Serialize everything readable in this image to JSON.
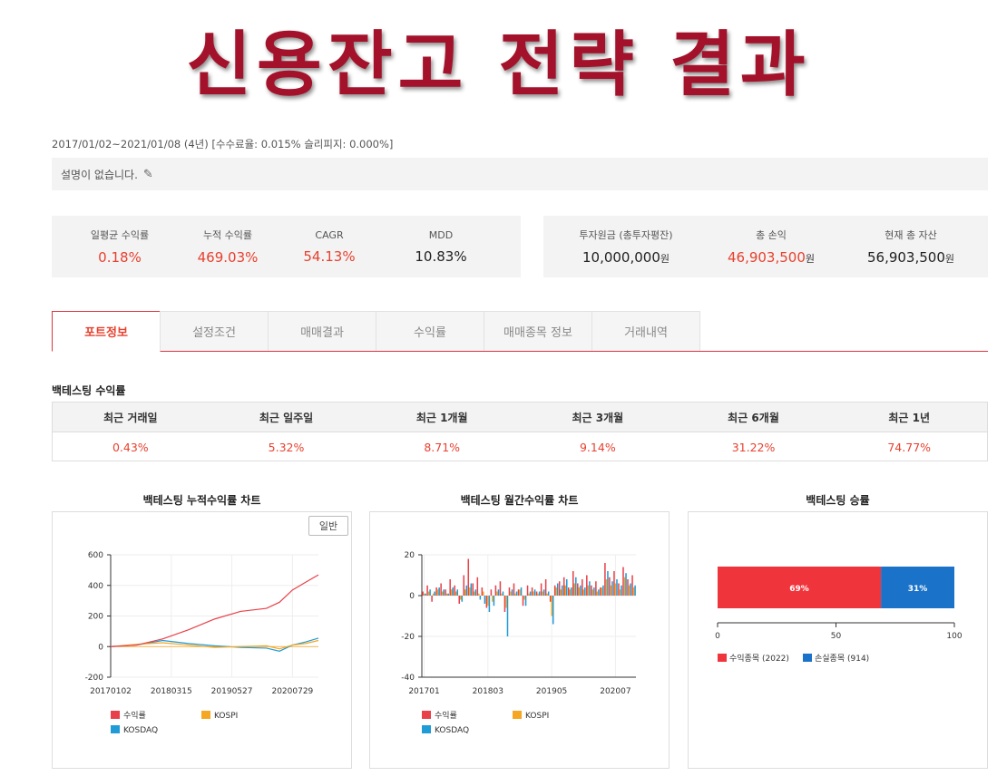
{
  "page_title": "신용잔고 전략 결과",
  "period": "2017/01/02~2021/01/08 (4년) [수수료율: 0.015% 슬리피지: 0.000%]",
  "description": "설명이 없습니다.",
  "stats_left": [
    {
      "label": "일평균 수익률",
      "value": "0.18%"
    },
    {
      "label": "누적 수익률",
      "value": "469.03%"
    },
    {
      "label": "CAGR",
      "value": "54.13%"
    },
    {
      "label": "MDD",
      "value": "10.83%"
    }
  ],
  "stats_right": [
    {
      "label": "투자원금 (총투자평잔)",
      "value": "10,000,000",
      "unit": "원"
    },
    {
      "label": "총 손익",
      "value": "46,903,500",
      "unit": "원"
    },
    {
      "label": "현재 총 자산",
      "value": "56,903,500",
      "unit": "원"
    }
  ],
  "tabs": [
    "포트정보",
    "설정조건",
    "매매결과",
    "수익률",
    "매매종목 정보",
    "거래내역"
  ],
  "active_tab": "포트정보",
  "backtest_section_title": "백테스팅 수익률",
  "returns_table": {
    "headers": [
      "최근 거래일",
      "최근 일주일",
      "최근 1개월",
      "최근 3개월",
      "최근 6개월",
      "최근 1년"
    ],
    "values": [
      "0.43%",
      "5.32%",
      "8.71%",
      "9.14%",
      "31.22%",
      "74.77%"
    ]
  },
  "colors": {
    "title": "#a3122a",
    "accent": "#e8412f",
    "series1": "#e8414a",
    "kospi": "#f5a623",
    "kosdaq": "#1f9bd7",
    "win": "#f0343c",
    "loss": "#1a72c9"
  },
  "chart_data": [
    {
      "type": "line",
      "title": "백테스팅 누적수익률 차트",
      "button_label": "일반",
      "x_ticks": [
        "20170102",
        "20180315",
        "20190527",
        "20200729"
      ],
      "y_ticks": [
        600,
        400,
        200,
        0,
        -200
      ],
      "ylim": [
        -200,
        600
      ],
      "series": [
        {
          "name": "수익률",
          "x": [
            "2017-01",
            "2017-07",
            "2018-01",
            "2018-07",
            "2019-01",
            "2019-07",
            "2020-01",
            "2020-04",
            "2020-07",
            "2020-10",
            "2021-01"
          ],
          "y": [
            0,
            10,
            50,
            110,
            180,
            230,
            250,
            290,
            370,
            420,
            469
          ]
        },
        {
          "name": "KOSPI",
          "x": [
            "2017-01",
            "2017-07",
            "2018-01",
            "2018-07",
            "2019-01",
            "2019-07",
            "2020-01",
            "2020-04",
            "2020-07",
            "2020-10",
            "2021-01"
          ],
          "y": [
            0,
            15,
            25,
            10,
            -5,
            0,
            5,
            -15,
            10,
            20,
            40
          ]
        },
        {
          "name": "KOSDAQ",
          "x": [
            "2017-01",
            "2017-07",
            "2018-01",
            "2018-07",
            "2019-01",
            "2019-07",
            "2020-01",
            "2020-04",
            "2020-07",
            "2020-10",
            "2021-01"
          ],
          "y": [
            0,
            10,
            40,
            20,
            5,
            -5,
            -10,
            -30,
            10,
            30,
            55
          ]
        }
      ],
      "legend": [
        "수익률",
        "KOSPI",
        "KOSDAQ"
      ]
    },
    {
      "type": "bar",
      "title": "백테스팅 월간수익률 차트",
      "x_ticks": [
        "201701",
        "201803",
        "201905",
        "202007"
      ],
      "y_ticks": [
        20,
        0,
        -20,
        -40
      ],
      "ylim": [
        -40,
        20
      ],
      "series": [
        {
          "name": "수익률",
          "values": [
            2,
            5,
            -3,
            4,
            6,
            3,
            8,
            5,
            -4,
            10,
            18,
            6,
            9,
            4,
            -6,
            3,
            5,
            7,
            -8,
            4,
            6,
            3,
            -5,
            5,
            4,
            2,
            6,
            8,
            -3,
            5,
            7,
            9,
            4,
            12,
            6,
            8,
            10,
            5,
            7,
            4,
            16,
            9,
            12,
            6,
            14,
            8,
            10
          ]
        },
        {
          "name": "KOSPI",
          "values": [
            1,
            2,
            1,
            3,
            2,
            1,
            3,
            2,
            -2,
            3,
            4,
            2,
            1,
            2,
            -5,
            -3,
            2,
            1,
            -6,
            2,
            1,
            3,
            -2,
            1,
            2,
            1,
            2,
            1,
            -10,
            4,
            3,
            5,
            3,
            6,
            4,
            3,
            5,
            3,
            2,
            4,
            8,
            5,
            6,
            3,
            9,
            5,
            4
          ]
        },
        {
          "name": "KOSDAQ",
          "values": [
            1,
            3,
            2,
            4,
            3,
            1,
            4,
            3,
            -3,
            5,
            6,
            3,
            -2,
            -4,
            -8,
            -5,
            3,
            2,
            -20,
            3,
            2,
            4,
            -5,
            2,
            3,
            2,
            3,
            2,
            -14,
            6,
            5,
            8,
            4,
            9,
            5,
            4,
            7,
            4,
            3,
            5,
            12,
            7,
            8,
            5,
            11,
            6,
            5
          ]
        }
      ],
      "legend": [
        "수익률",
        "KOSPI",
        "KOSDAQ"
      ]
    },
    {
      "type": "bar",
      "title": "백테스팅 승률",
      "orientation": "horizontal-stacked",
      "segments": [
        {
          "name": "수익종목 (2022)",
          "value": 69,
          "label": "69%"
        },
        {
          "name": "손실종목 (914)",
          "value": 31,
          "label": "31%"
        }
      ],
      "x_ticks": [
        0,
        50,
        100
      ],
      "xlim": [
        0,
        100
      ]
    }
  ]
}
